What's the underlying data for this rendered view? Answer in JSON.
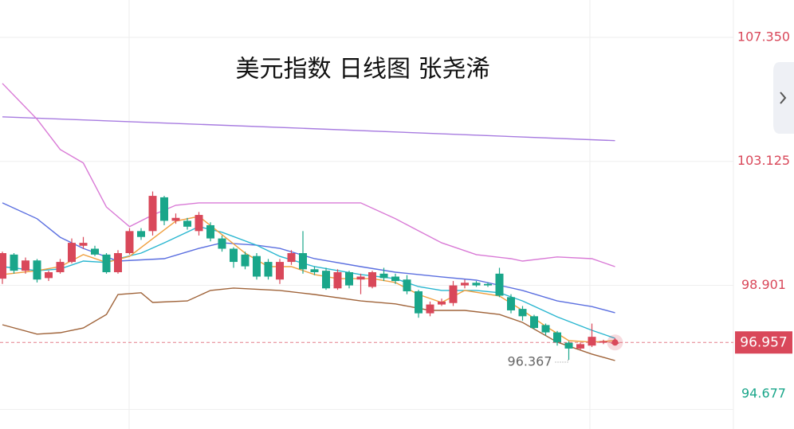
{
  "chart_data": {
    "type": "candlestick",
    "title": "美元指数 日线图 张尧浠",
    "up_color": "#d9485a",
    "down_color": "#1aa68a",
    "ylim": [
      94.01,
      108.62
    ],
    "yticks": [
      {
        "value": 107.35,
        "label": "107.350"
      },
      103.125,
      98.901,
      94.677
    ],
    "grid": true,
    "open": [
      99.13,
      99.95,
      99.4,
      99.75,
      99.15,
      99.35,
      99.7,
      100.25,
      100.15,
      99.95,
      99.35,
      100.0,
      100.75,
      100.75,
      101.9,
      101.1,
      101.1,
      100.75,
      100.95,
      100.5,
      100.15,
      99.95,
      99.9,
      99.7,
      99.1,
      99.7,
      100.0,
      99.45,
      99.4,
      98.8,
      99.35,
      99.1,
      98.85,
      99.3,
      99.2,
      99.1,
      98.7,
      97.95,
      98.25,
      98.3,
      98.9,
      98.99,
      98.95,
      99.3,
      98.5,
      98.1,
      97.85,
      97.55,
      97.3,
      96.95,
      96.75,
      96.85,
      96.95,
      96.95
    ],
    "high": [
      100.05,
      100.0,
      99.85,
      99.8,
      99.4,
      99.8,
      100.5,
      100.55,
      100.25,
      100.0,
      100.1,
      100.85,
      100.85,
      102.1,
      101.95,
      101.35,
      101.2,
      101.4,
      101.05,
      100.6,
      100.2,
      100.05,
      100.0,
      99.8,
      99.8,
      100.1,
      100.75,
      99.55,
      99.5,
      99.45,
      99.4,
      99.3,
      99.4,
      99.5,
      99.3,
      99.25,
      98.75,
      98.35,
      98.45,
      99.05,
      99.1,
      99.05,
      99.0,
      99.5,
      98.6,
      98.2,
      97.9,
      97.6,
      97.35,
      97.0,
      96.95,
      97.6,
      97.05,
      97.1
    ],
    "low": [
      98.95,
      99.3,
      99.3,
      99.0,
      99.05,
      99.3,
      99.65,
      100.15,
      99.9,
      99.3,
      99.3,
      99.95,
      100.45,
      100.6,
      100.95,
      101.0,
      100.8,
      100.6,
      100.4,
      100.05,
      99.5,
      99.45,
      99.1,
      99.1,
      98.95,
      99.6,
      99.3,
      99.25,
      98.75,
      98.75,
      98.8,
      98.6,
      98.8,
      99.05,
      98.95,
      98.6,
      97.8,
      97.85,
      98.2,
      98.2,
      98.8,
      98.85,
      98.85,
      98.5,
      97.95,
      97.7,
      97.4,
      97.2,
      96.85,
      96.367,
      96.7,
      96.8,
      96.9,
      96.9
    ],
    "close": [
      100.0,
      99.4,
      99.75,
      99.1,
      99.35,
      99.7,
      100.35,
      100.35,
      99.95,
      99.35,
      100.0,
      100.75,
      100.55,
      101.95,
      101.1,
      101.2,
      100.9,
      101.3,
      100.5,
      100.15,
      99.7,
      99.55,
      99.2,
      99.2,
      99.7,
      100.0,
      99.45,
      99.35,
      98.8,
      99.35,
      98.9,
      99.2,
      99.35,
      99.15,
      99.05,
      98.7,
      97.95,
      98.25,
      98.35,
      98.9,
      98.99,
      98.9,
      98.9,
      98.55,
      98.05,
      97.85,
      97.45,
      97.3,
      96.95,
      96.75,
      96.9,
      97.15,
      97.0,
      96.957
    ],
    "lines": [
      {
        "color": "#a77be0",
        "x": [
          0,
          26,
          53
        ],
        "values": [
          104.64,
          104.25,
          103.83
        ]
      },
      {
        "color": "#d97ad6",
        "x": [
          0,
          3,
          5,
          7,
          9,
          11,
          13,
          15,
          17,
          31,
          34,
          36,
          38,
          41,
          44,
          45,
          48,
          51,
          53
        ],
        "values": [
          105.78,
          104.56,
          103.53,
          103.07,
          101.57,
          100.9,
          101.3,
          101.63,
          101.71,
          101.71,
          101.17,
          100.76,
          100.35,
          99.95,
          99.81,
          99.73,
          99.87,
          99.81,
          99.54
        ]
      },
      {
        "color": "#a0643a",
        "x": [
          0,
          3,
          5,
          7,
          9,
          10,
          12,
          13,
          16,
          18,
          20,
          24,
          27,
          31,
          34,
          37,
          40,
          43,
          45,
          48,
          51,
          53
        ],
        "values": [
          97.56,
          97.24,
          97.29,
          97.45,
          97.91,
          98.59,
          98.65,
          98.32,
          98.37,
          98.73,
          98.81,
          98.73,
          98.59,
          98.37,
          98.27,
          98.05,
          98.05,
          97.91,
          97.64,
          96.97,
          96.56,
          96.34
        ]
      },
      {
        "color": "#5b6fe0",
        "x": [
          0,
          3,
          5,
          7,
          10,
          14,
          17,
          19,
          22,
          24,
          27,
          31,
          34,
          38,
          41,
          45,
          48,
          51,
          53
        ],
        "values": [
          101.71,
          101.17,
          100.54,
          100.16,
          99.73,
          99.81,
          100.16,
          100.35,
          100.27,
          100.16,
          99.81,
          99.54,
          99.35,
          99.19,
          99.08,
          98.73,
          98.37,
          98.18,
          97.97
        ]
      },
      {
        "color": "#29b6d0",
        "x": [
          0,
          3,
          5,
          7,
          9,
          10,
          12,
          14,
          17,
          19,
          22,
          24,
          27,
          31,
          34,
          36,
          38,
          41,
          43,
          45,
          48,
          51,
          53
        ],
        "values": [
          99.54,
          99.4,
          99.46,
          99.73,
          99.68,
          99.81,
          100.0,
          100.35,
          100.9,
          100.71,
          100.27,
          99.89,
          99.54,
          99.27,
          99.13,
          98.86,
          98.73,
          98.73,
          98.65,
          98.37,
          97.83,
          97.37,
          97.1
        ]
      },
      {
        "color": "#f0a040",
        "x": [
          0,
          3,
          5,
          7,
          9,
          11,
          13,
          15,
          17,
          19,
          21,
          23,
          25,
          27,
          29,
          32,
          34,
          36,
          38,
          40,
          43,
          45,
          47,
          49,
          51,
          53
        ],
        "values": [
          99.27,
          99.4,
          99.54,
          99.95,
          99.68,
          99.89,
          100.49,
          101.09,
          101.25,
          100.63,
          100.0,
          99.54,
          99.54,
          99.27,
          99.13,
          99.13,
          99.0,
          98.59,
          98.32,
          98.73,
          98.54,
          98.05,
          97.51,
          97.02,
          96.97,
          97.02
        ]
      }
    ],
    "last_price": 96.957,
    "min_low": 96.367
  }
}
